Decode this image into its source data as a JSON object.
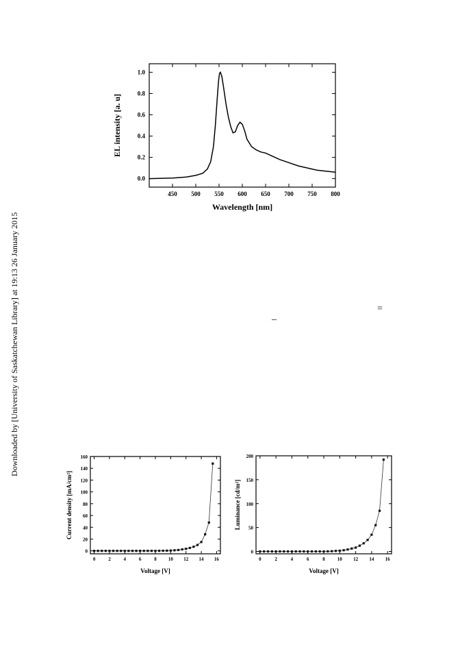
{
  "side_note": "Downloaded by [University of Saskatchewan Library] at 19:13 26 January 2015",
  "symbols": {
    "equals": "=",
    "bar": "_"
  },
  "chart_data": [
    {
      "type": "line",
      "title": "",
      "xlabel": "Wavelength [nm]",
      "ylabel": "EL intensity [a. u]",
      "xlim": [
        400,
        800
      ],
      "ylim": [
        -0.08,
        1.08
      ],
      "xticks": [
        450,
        500,
        550,
        600,
        650,
        700,
        750,
        800
      ],
      "xtick_labels": [
        "450",
        "500",
        "550",
        "600",
        "650",
        "700",
        "750",
        "800"
      ],
      "yticks": [
        0.0,
        0.2,
        0.4,
        0.6,
        0.8,
        1.0
      ],
      "ytick_labels": [
        "0.0",
        "0.2",
        "0.4",
        "0.6",
        "0.8",
        "1.0"
      ],
      "grid": false,
      "series": [
        {
          "x": [
            400,
            450,
            480,
            500,
            515,
            525,
            532,
            538,
            542,
            546,
            549,
            551,
            553,
            556,
            560,
            565,
            570,
            575,
            580,
            585,
            590,
            595,
            600,
            605,
            610,
            620,
            630,
            640,
            650,
            660,
            670,
            680,
            700,
            720,
            740,
            760,
            780,
            800
          ],
          "y": [
            0.0,
            0.005,
            0.015,
            0.03,
            0.05,
            0.09,
            0.16,
            0.3,
            0.5,
            0.75,
            0.92,
            0.99,
            1.0,
            0.96,
            0.85,
            0.7,
            0.58,
            0.49,
            0.43,
            0.44,
            0.5,
            0.53,
            0.51,
            0.45,
            0.37,
            0.3,
            0.27,
            0.25,
            0.24,
            0.22,
            0.2,
            0.18,
            0.15,
            0.12,
            0.1,
            0.08,
            0.07,
            0.06
          ]
        }
      ]
    },
    {
      "type": "line",
      "title": "",
      "xlabel": "Voltage [V]",
      "ylabel": "Current density [mA/cm²]",
      "xlim": [
        -0.5,
        16.5
      ],
      "ylim": [
        -5,
        160
      ],
      "xticks": [
        0,
        2,
        4,
        6,
        8,
        10,
        12,
        14,
        16
      ],
      "xtick_labels": [
        "0",
        "2",
        "4",
        "6",
        "8",
        "10",
        "12",
        "14",
        "16"
      ],
      "yticks": [
        0,
        20,
        40,
        60,
        80,
        100,
        120,
        140,
        160
      ],
      "ytick_labels": [
        "0",
        "20",
        "40",
        "60",
        "80",
        "100",
        "120",
        "140",
        "160"
      ],
      "grid": false,
      "series": [
        {
          "x": [
            0,
            0.5,
            1,
            1.5,
            2,
            2.5,
            3,
            3.5,
            4,
            4.5,
            5,
            5.5,
            6,
            6.5,
            7,
            7.5,
            8,
            8.5,
            9,
            9.5,
            10,
            10.5,
            11,
            11.5,
            12,
            12.5,
            13,
            13.5,
            14,
            14.5,
            15,
            15.5
          ],
          "y": [
            0,
            0,
            0,
            0,
            0,
            0,
            0,
            0,
            0,
            0,
            0,
            0,
            0,
            0,
            0,
            0,
            0,
            0.1,
            0.2,
            0.4,
            0.6,
            1,
            1.5,
            2.5,
            3.5,
            5,
            7,
            10,
            15,
            28,
            48,
            148
          ]
        }
      ]
    },
    {
      "type": "line",
      "title": "",
      "xlabel": "Voltage [V]",
      "ylabel": "Luminance [cd/m²]",
      "xlim": [
        -0.5,
        16.5
      ],
      "ylim": [
        -5,
        200
      ],
      "xticks": [
        0,
        2,
        4,
        6,
        8,
        10,
        12,
        14,
        16
      ],
      "xtick_labels": [
        "0",
        "2",
        "4",
        "6",
        "8",
        "10",
        "12",
        "14",
        "16"
      ],
      "yticks": [
        0,
        50,
        100,
        150,
        200
      ],
      "ytick_labels": [
        "0",
        "50",
        "100",
        "150",
        "200"
      ],
      "grid": false,
      "series": [
        {
          "x": [
            0,
            0.5,
            1,
            1.5,
            2,
            2.5,
            3,
            3.5,
            4,
            4.5,
            5,
            5.5,
            6,
            6.5,
            7,
            7.5,
            8,
            8.5,
            9,
            9.5,
            10,
            10.5,
            11,
            11.5,
            12,
            12.5,
            13,
            13.5,
            14,
            14.5,
            15,
            15.5
          ],
          "y": [
            0,
            0,
            0,
            0,
            0,
            0,
            0,
            0,
            0,
            0,
            0,
            0,
            0,
            0,
            0,
            0,
            0,
            0.2,
            0.5,
            1,
            1.5,
            2.5,
            4,
            6,
            8,
            12,
            17,
            24,
            35,
            55,
            85,
            192
          ]
        }
      ]
    }
  ]
}
